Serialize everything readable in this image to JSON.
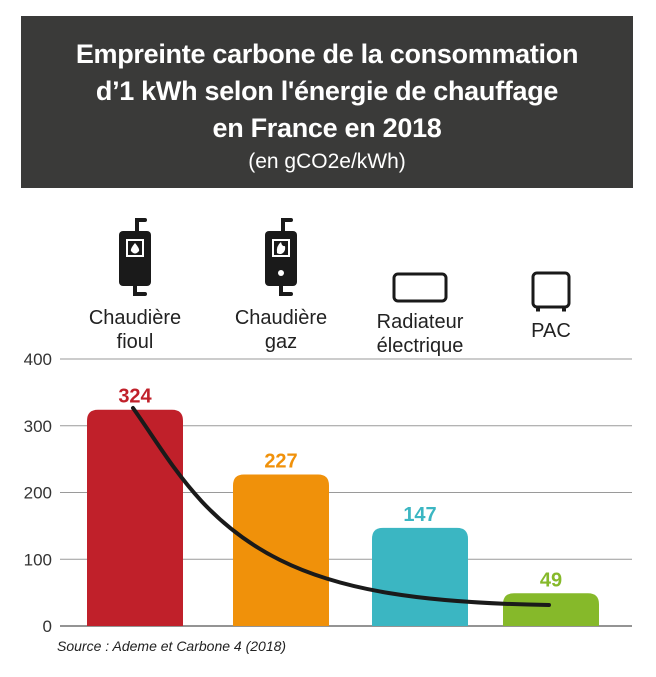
{
  "header": {
    "title_lines": [
      "Empreinte carbone de la consommation",
      "d’1 kWh selon l'énergie de chauffage",
      "en France en 2018"
    ],
    "subtitle": "(en gCO2e/kWh)"
  },
  "chart_data": {
    "type": "bar",
    "categories": [
      [
        "Chaudière",
        "fioul"
      ],
      [
        "Chaudière",
        "gaz"
      ],
      [
        "Radiateur",
        "électrique"
      ],
      [
        "PAC"
      ]
    ],
    "values": [
      324,
      227,
      147,
      49
    ],
    "ylim": [
      0,
      400
    ],
    "yticks": [
      "0",
      "100",
      "200",
      "300",
      "400"
    ],
    "grid": true,
    "colors": [
      "#c0202a",
      "#f0910a",
      "#3bb6c2",
      "#86b92a"
    ],
    "icons": [
      "fuel-boiler-icon",
      "gas-boiler-icon",
      "electric-radiator-icon",
      "heat-pump-icon"
    ],
    "trend_curve": "black decreasing curve"
  },
  "source": "Source : Ademe et Carbone 4 (2018)"
}
